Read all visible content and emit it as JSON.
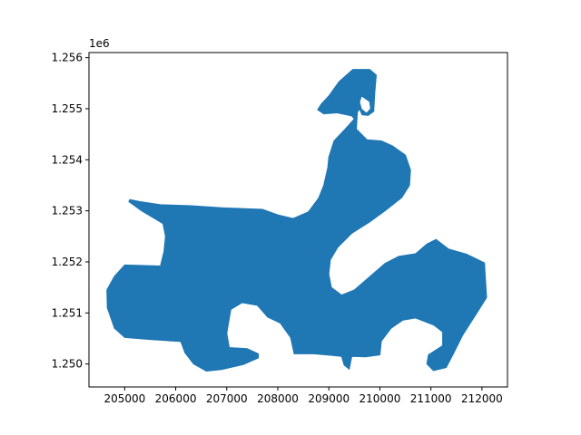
{
  "chart_data": {
    "type": "area",
    "title": "",
    "xlabel": "",
    "ylabel": "",
    "xlim": [
      204300,
      212500
    ],
    "ylim": [
      1249550,
      1256100
    ],
    "y_offset_label": "1e6",
    "x_ticks": [
      205000,
      206000,
      207000,
      208000,
      209000,
      210000,
      211000,
      212000
    ],
    "x_tick_labels": [
      "205000",
      "206000",
      "207000",
      "208000",
      "209000",
      "210000",
      "211000",
      "212000"
    ],
    "y_ticks": [
      1250000,
      1251000,
      1252000,
      1253000,
      1254000,
      1255000,
      1256000
    ],
    "y_tick_labels": [
      "1.250",
      "1.251",
      "1.252",
      "1.253",
      "1.254",
      "1.255",
      "1.256"
    ],
    "grid": false,
    "fill_color": "#1f77b4",
    "polygon": [
      [
        205000,
        1251940
      ],
      [
        205700,
        1251920
      ],
      [
        205770,
        1252200
      ],
      [
        205800,
        1252500
      ],
      [
        205750,
        1252750
      ],
      [
        205330,
        1253000
      ],
      [
        205080,
        1253180
      ],
      [
        205100,
        1253220
      ],
      [
        205300,
        1253180
      ],
      [
        205700,
        1253120
      ],
      [
        206300,
        1253100
      ],
      [
        206900,
        1253060
      ],
      [
        207700,
        1253030
      ],
      [
        208000,
        1252920
      ],
      [
        208300,
        1252850
      ],
      [
        208600,
        1252980
      ],
      [
        208800,
        1253250
      ],
      [
        208900,
        1253500
      ],
      [
        208980,
        1253850
      ],
      [
        209000,
        1254050
      ],
      [
        209100,
        1254370
      ],
      [
        209320,
        1254600
      ],
      [
        209500,
        1254800
      ],
      [
        209450,
        1254860
      ],
      [
        209160,
        1254920
      ],
      [
        208900,
        1254900
      ],
      [
        208780,
        1254980
      ],
      [
        208850,
        1255090
      ],
      [
        209000,
        1255250
      ],
      [
        209200,
        1255530
      ],
      [
        209470,
        1255770
      ],
      [
        209800,
        1255770
      ],
      [
        209930,
        1255660
      ],
      [
        209900,
        1255300
      ],
      [
        209880,
        1254950
      ],
      [
        209770,
        1254870
      ],
      [
        209650,
        1254880
      ],
      [
        209600,
        1255000
      ],
      [
        209560,
        1254930
      ],
      [
        209540,
        1254600
      ],
      [
        209750,
        1254390
      ],
      [
        210030,
        1254370
      ],
      [
        210250,
        1254270
      ],
      [
        210500,
        1254090
      ],
      [
        210600,
        1253800
      ],
      [
        210580,
        1253500
      ],
      [
        210430,
        1253260
      ],
      [
        210100,
        1253000
      ],
      [
        209800,
        1252780
      ],
      [
        209450,
        1252560
      ],
      [
        209170,
        1252280
      ],
      [
        209030,
        1252040
      ],
      [
        209000,
        1251760
      ],
      [
        209050,
        1251500
      ],
      [
        209250,
        1251350
      ],
      [
        209500,
        1251450
      ],
      [
        209790,
        1251700
      ],
      [
        210100,
        1251970
      ],
      [
        210370,
        1252110
      ],
      [
        210700,
        1252160
      ],
      [
        210920,
        1252350
      ],
      [
        211100,
        1252440
      ],
      [
        211350,
        1252250
      ],
      [
        211700,
        1252150
      ],
      [
        212050,
        1251980
      ],
      [
        212090,
        1251300
      ],
      [
        211900,
        1251000
      ],
      [
        211620,
        1250560
      ],
      [
        211450,
        1250220
      ],
      [
        211300,
        1249930
      ],
      [
        211050,
        1249870
      ],
      [
        210920,
        1250000
      ],
      [
        210950,
        1250180
      ],
      [
        211230,
        1250360
      ],
      [
        211230,
        1250630
      ],
      [
        211060,
        1250760
      ],
      [
        210700,
        1250900
      ],
      [
        210450,
        1250860
      ],
      [
        210220,
        1250700
      ],
      [
        210030,
        1250450
      ],
      [
        210000,
        1250180
      ],
      [
        209720,
        1250140
      ],
      [
        209450,
        1250150
      ],
      [
        209400,
        1249900
      ],
      [
        209300,
        1249980
      ],
      [
        209250,
        1250150
      ],
      [
        209060,
        1250170
      ],
      [
        208700,
        1250200
      ],
      [
        208320,
        1250200
      ],
      [
        208250,
        1250520
      ],
      [
        208050,
        1250800
      ],
      [
        207800,
        1250920
      ],
      [
        207600,
        1251150
      ],
      [
        207300,
        1251200
      ],
      [
        207080,
        1251070
      ],
      [
        207000,
        1250600
      ],
      [
        207050,
        1250320
      ],
      [
        207400,
        1250300
      ],
      [
        207620,
        1250200
      ],
      [
        207620,
        1250120
      ],
      [
        207330,
        1249990
      ],
      [
        206900,
        1249890
      ],
      [
        206600,
        1249860
      ],
      [
        206350,
        1250000
      ],
      [
        206180,
        1250220
      ],
      [
        206100,
        1250440
      ],
      [
        205500,
        1250480
      ],
      [
        205000,
        1250520
      ],
      [
        204800,
        1250700
      ],
      [
        204660,
        1251100
      ],
      [
        204650,
        1251450
      ],
      [
        204800,
        1251720
      ]
    ],
    "holes": [
      [
        [
          209640,
          1255250
        ],
        [
          209800,
          1255140
        ],
        [
          209820,
          1255000
        ],
        [
          209740,
          1254910
        ],
        [
          209640,
          1254990
        ],
        [
          209600,
          1255130
        ]
      ]
    ]
  }
}
